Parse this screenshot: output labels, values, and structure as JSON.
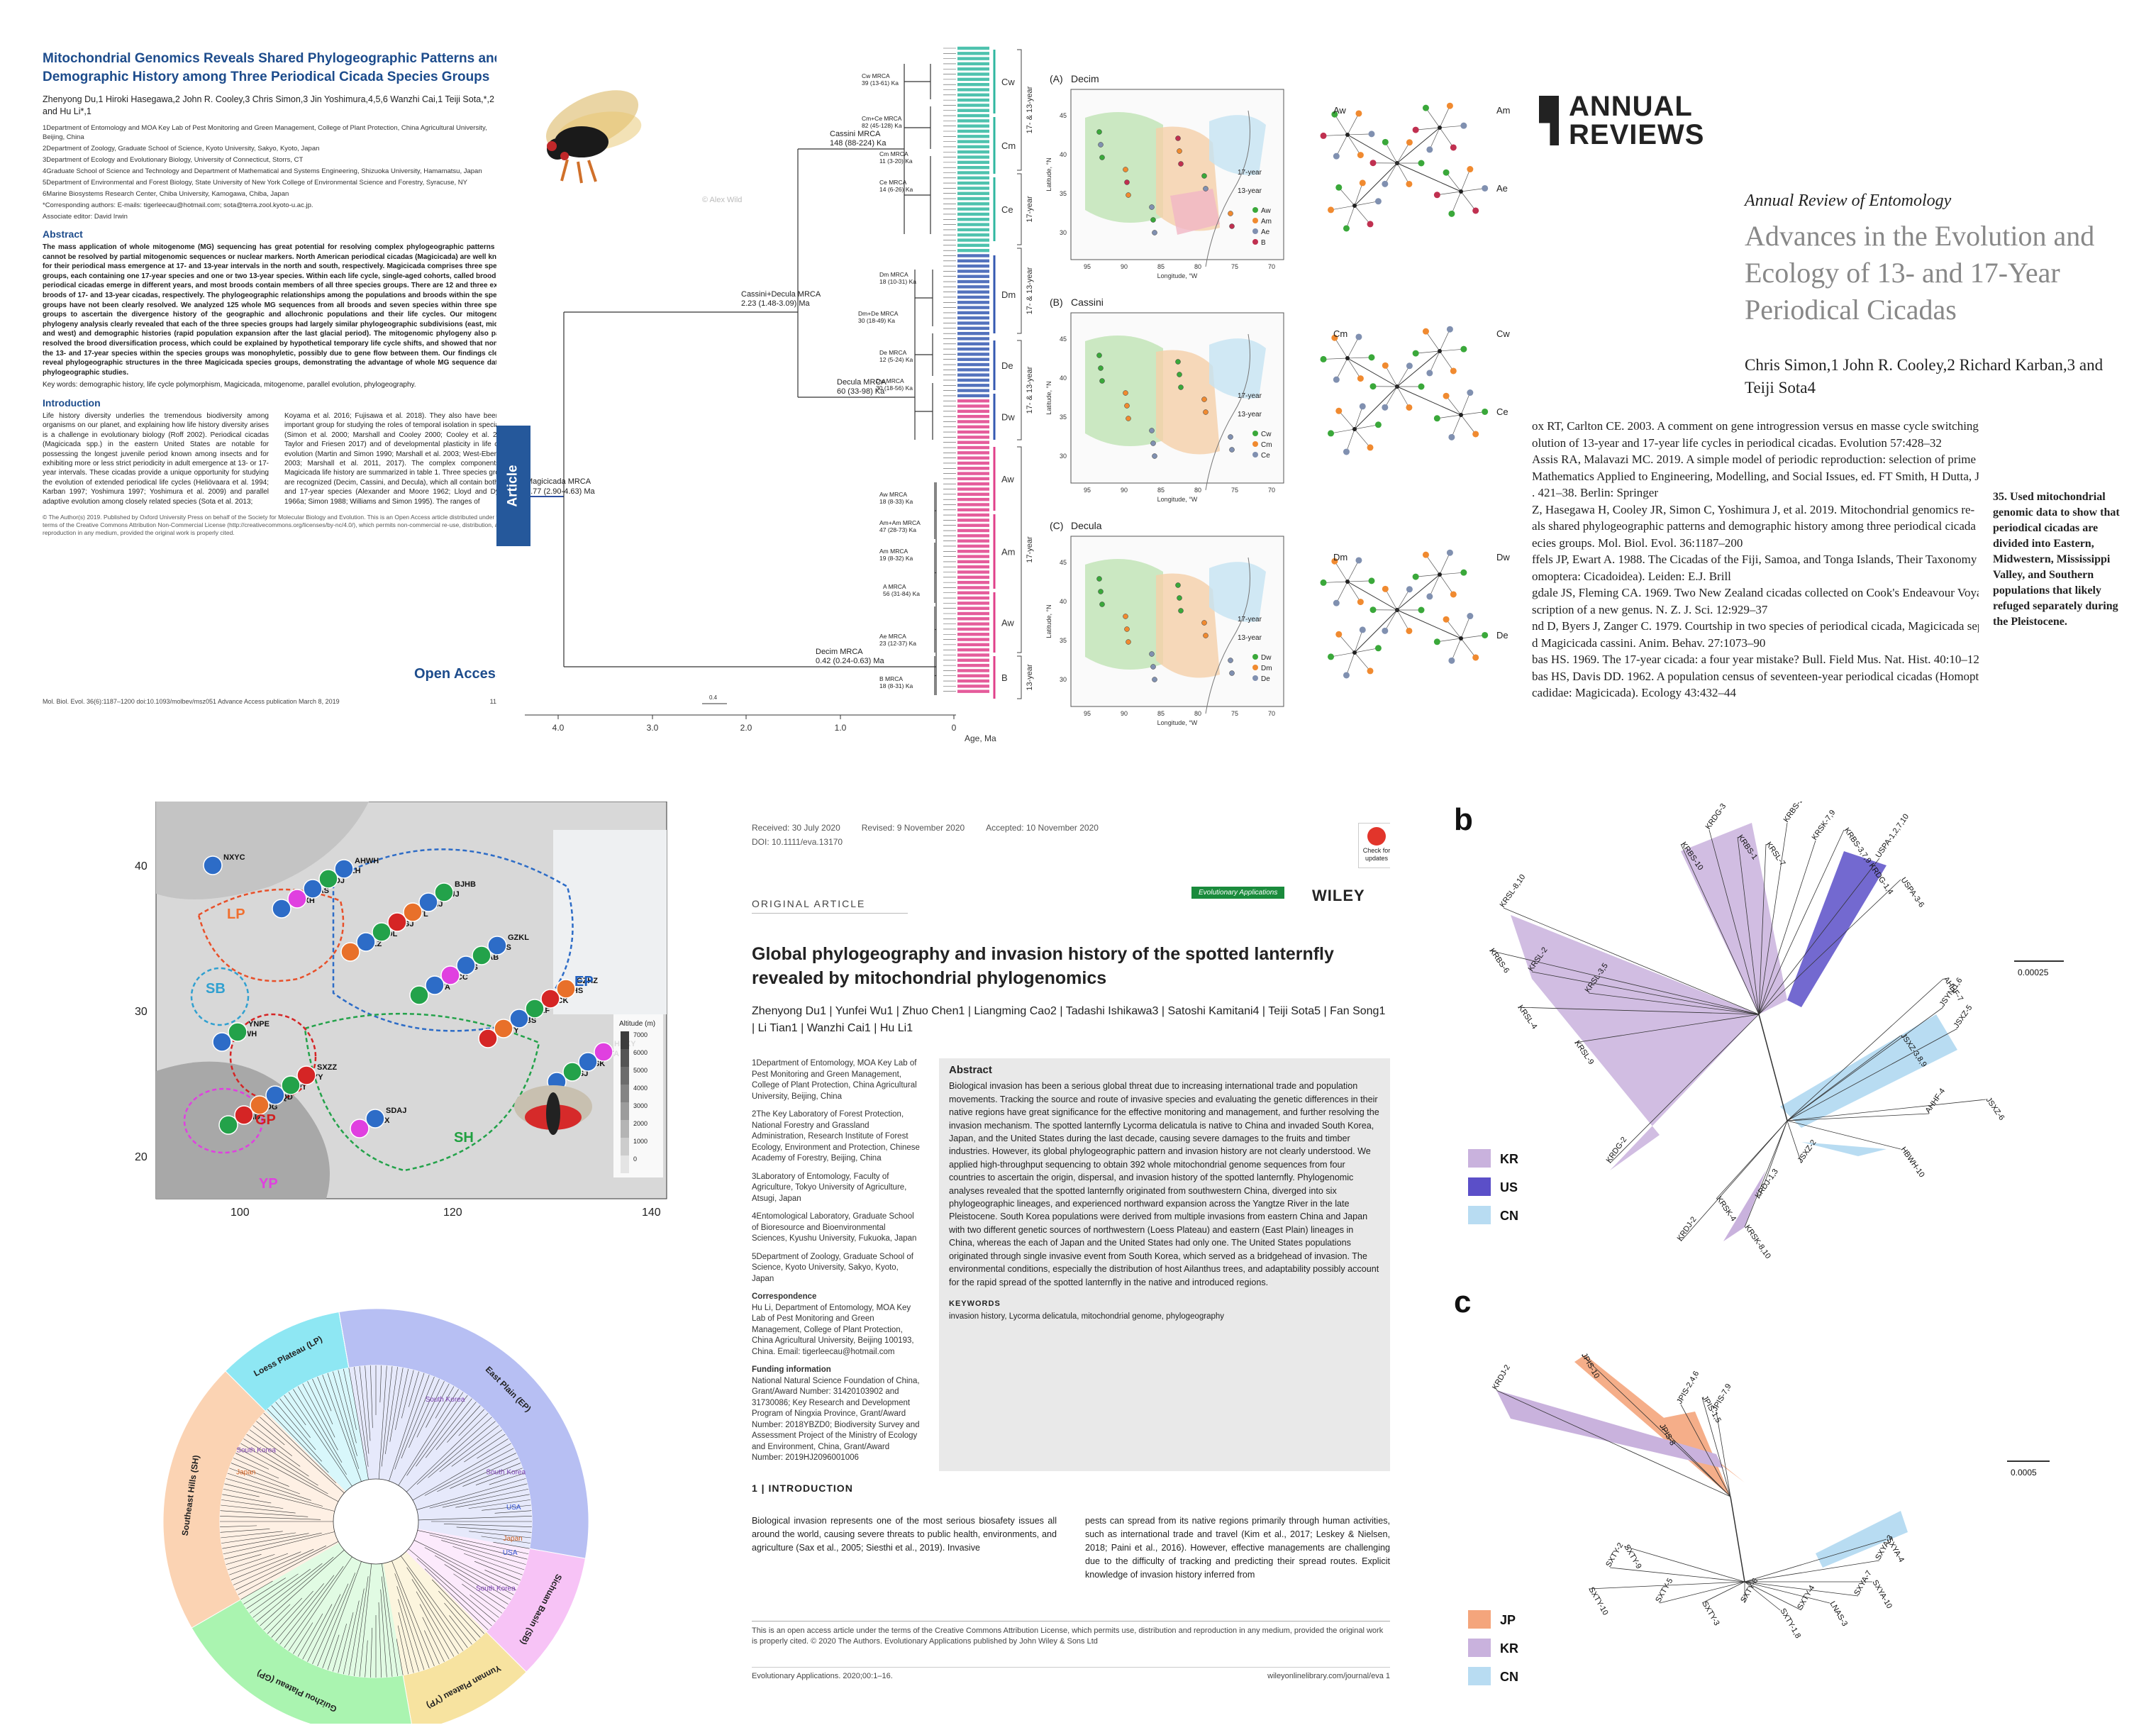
{
  "paperA": {
    "title": "Mitochondrial Genomics Reveals Shared Phylogeographic Patterns and Demographic History among Three Periodical Cicada Species Groups",
    "authors": "Zhenyong Du,1 Hiroki Hasegawa,2 John R. Cooley,3 Chris Simon,3 Jin Yoshimura,4,5,6 Wanzhi Cai,1 Teiji Sota,*,2 and Hu Li*,1",
    "affiliations": [
      "1Department of Entomology and MOA Key Lab of Pest Monitoring and Green Management, College of Plant Protection, China Agricultural University, Beijing, China",
      "2Department of Zoology, Graduate School of Science, Kyoto University, Sakyo, Kyoto, Japan",
      "3Department of Ecology and Evolutionary Biology, University of Connecticut, Storrs, CT",
      "4Graduate School of Science and Technology and Department of Mathematical and Systems Engineering, Shizuoka University, Hamamatsu, Japan",
      "5Department of Environmental and Forest Biology, State University of New York College of Environmental Science and Forestry, Syracuse, NY",
      "6Marine Biosystems Research Center, Chiba University, Kamogawa, Chiba, Japan",
      "*Corresponding authors: E-mails: tigerleecau@hotmail.com; sota@terra.zool.kyoto-u.ac.jp.",
      "Associate editor: David Irwin"
    ],
    "abstract_heading": "Abstract",
    "abstract": "The mass application of whole mitogenome (MG) sequencing has great potential for resolving complex phylogeographic patterns that cannot be resolved by partial mitogenomic sequences or nuclear markers. North American periodical cicadas (Magicicada) are well known for their periodical mass emergence at 17- and 13-year intervals in the north and south, respectively. Magicicada comprises three species groups, each containing one 17-year species and one or two 13-year species. Within each life cycle, single-aged cohorts, called broods, of periodical cicadas emerge in different years, and most broods contain members of all three species groups. There are 12 and three extant broods of 17- and 13-year cicadas, respectively. The phylogeographic relationships among the populations and broods within the species groups have not been clearly resolved. We analyzed 125 whole MG sequences from all broods and seven species within three species groups to ascertain the divergence history of the geographic and allochronic populations and their life cycles. Our mitogenomic phylogeny analysis clearly revealed that each of the three species groups had largely similar phylogeographic subdivisions (east, middle, and west) and demographic histories (rapid population expansion after the last glacial period). The mitogenomic phylogeny also partly resolved the brood diversification process, which could be explained by hypothetical temporary life cycle shifts, and showed that none of the 13- and 17-year species within the species groups was monophyletic, possibly due to gene flow between them. Our findings clearly reveal phylogeographic structures in the three Magicicada species groups, demonstrating the advantage of whole MG sequence data in phylogeographic studies.",
    "keywords": "Key words: demographic history, life cycle polymorphism, Magicicada, mitogenome, parallel evolution, phylogeography.",
    "intro_heading": "Introduction",
    "intro_col1": "Life history diversity underlies the tremendous biodiversity among organisms on our planet, and explaining how life history diversity arises is a challenge in evolutionary biology (Roff 2002). Periodical cicadas (Magicicada spp.) in the eastern United States are notable for possessing the longest juvenile period known among insects and for exhibiting more or less strict periodicity in adult emergence at 13- or 17-year intervals. These cicadas provide a unique opportunity for studying the evolution of extended periodical life cycles (Heliövaara et al. 1994; Karban 1997; Yoshimura 1997; Yoshimura et al. 2009) and parallel adaptive evolution among closely related species (Sota et al. 2013;",
    "intro_col2": "Koyama et al. 2016; Fujisawa et al. 2018). They also have been an important group for studying the roles of temporal isolation in speciation (Simon et al. 2000; Marshall and Cooley 2000; Cooley et al. 2001; Taylor and Friesen 2017) and of developmental plasticity in life cycle evolution (Martin and Simon 1990; Marshall et al. 2003; West-Eberhard 2003; Marshall et al. 2011, 2017). The complex components of Magicicada life history are summarized in table 1. Three species groups are recognized (Decim, Cassini, and Decula), which all contain both 13- and 17-year species (Alexander and Moore 1962; Lloyd and Dybas 1966a; Simon 1988; Williams and Simon 1995). The ranges of",
    "footnote": "© The Author(s) 2019. Published by Oxford University Press on behalf of the Society for Molecular Biology and Evolution. This is an Open Access article distributed under the terms of the Creative Commons Attribution Non-Commercial License (http://creativecommons.org/licenses/by-nc/4.0/), which permits non-commercial re-use, distribution, and reproduction in any medium, provided the original work is properly cited.",
    "open_access": "Open Access",
    "citation": "Mol. Biol. Evol. 36(6):1187–1200 doi:10.1093/molbev/msz051 Advance Access publication March 8, 2019",
    "page": "1187"
  },
  "tree": {
    "article_tab": "Article",
    "watermark": "© Alex Wild",
    "root_label": "Magicicada MRCA",
    "root_value": "3.77 (2.90-4.63) Ma",
    "nodes": [
      {
        "label": "Cassini MRCA",
        "value": "148 (88-224) Ka"
      },
      {
        "label": "Cassini+Decula MRCA",
        "value": "2.23 (1.48-3.09) Ma"
      },
      {
        "label": "Decula MRCA",
        "value": "60 (33-98) Ka"
      },
      {
        "label": "Decim MRCA",
        "value": "0.42 (0.24-0.63) Ma"
      },
      {
        "label": "Cw MRCA",
        "value": "39 (13-61) Ka"
      },
      {
        "label": "Cm+Ce MRCA",
        "value": "82 (45-128) Ka"
      },
      {
        "label": "Cm MRCA",
        "value": "11 (3-20) Ka"
      },
      {
        "label": "Ce MRCA",
        "value": "14 (6-26) Ka"
      },
      {
        "label": "Dm MRCA",
        "value": "18 (10-31) Ka"
      },
      {
        "label": "Dm+De MRCA",
        "value": "30 (18-49) Ka"
      },
      {
        "label": "De MRCA",
        "value": "12 (5-24) Ka"
      },
      {
        "label": "Dw MRCA",
        "value": "30 (18-56) Ka"
      },
      {
        "label": "Aw MRCA",
        "value": "18 (8-33) Ka"
      },
      {
        "label": "Am+Am MRCA",
        "value": "47 (28-73) Ka"
      },
      {
        "label": "Am MRCA",
        "value": "19 (8-32) Ka"
      },
      {
        "label": "A MRCA",
        "value": "56 (31-84) Ka"
      },
      {
        "label": "Ae MRCA",
        "value": "23 (12-37) Ka"
      },
      {
        "label": "B MRCA",
        "value": "18 (8-31) Ka"
      }
    ],
    "clades": [
      "Cw",
      "Cm",
      "Ce",
      "Dm",
      "De",
      "Dw",
      "Aw",
      "Am",
      "Aw",
      "B"
    ],
    "brackets": [
      "17- & 13-year",
      "17-year",
      "17- & 13-year",
      "17- & 13-year",
      "17-year",
      "13-year"
    ],
    "axis_ticks": [
      "4.0",
      "3.0",
      "2.0",
      "1.0",
      "0"
    ],
    "axis_label": "Age, Ma",
    "scale_label": "0.4",
    "colors": {
      "cassini": "#2fb7a0",
      "decula": "#3559b1",
      "decim": "#e0408a",
      "root": "#2d4fa0"
    }
  },
  "maps": {
    "panels": [
      {
        "tag": "(A)",
        "name": "Decim",
        "legend": [
          "Aw",
          "Am",
          "Ae",
          "B"
        ],
        "colors": [
          "#3aa83a",
          "#f08a30",
          "#8090b0",
          "#c03050"
        ]
      },
      {
        "tag": "(B)",
        "name": "Cassini",
        "legend": [
          "Cw",
          "Cm",
          "Ce"
        ],
        "colors": [
          "#3aa83a",
          "#f08a30",
          "#8090b0"
        ]
      },
      {
        "tag": "(C)",
        "name": "Decula",
        "legend": [
          "Dw",
          "Dm",
          "De"
        ],
        "colors": [
          "#3aa83a",
          "#f08a30",
          "#8090b0"
        ]
      }
    ],
    "lat_ticks": [
      "45",
      "40",
      "35",
      "30"
    ],
    "lon_ticks": [
      "95",
      "90",
      "85",
      "80",
      "75",
      "70"
    ],
    "lat_label": "Latitude, °N",
    "lon_label": "Longitude, °W",
    "year_labels": [
      "17-year",
      "13-year"
    ],
    "network_labels_a": [
      "Aw",
      "Am",
      "Ae"
    ],
    "network_labels_b": [
      "Cm",
      "Cw",
      "Ce"
    ],
    "network_labels_c": [
      "Dm",
      "Dw",
      "De"
    ]
  },
  "annual": {
    "logo": "ANNUAL\nREVIEWS",
    "logo_line1": "ANNUAL",
    "logo_line2": "REVIEWS",
    "journal": "Annual Review of Entomology",
    "title": "Advances in the Evolution and Ecology of 13- and 17-Year Periodical Cicadas",
    "authors": "Chris Simon,1 John R. Cooley,2 Richard Karban,3 and Teiji Sota4",
    "refs": [
      "ox RT, Carlton CE. 2003. A comment on gene introgression versus en masse cycle switching in the",
      "olution of 13-year and 17-year life cycles in periodical cicadas. Evolution 57:428–32",
      "Assis RA, Malavazi MC. 2019. A simple model of periodic reproduction: selection of prime periods.",
      "Mathematics Applied to Engineering, Modelling, and Social Issues, ed. FT Smith, H Dutta, JN Mordeson,",
      ". 421–38. Berlin: Springer",
      "Z, Hasegawa H, Cooley JR, Simon C, Yoshimura J, et al. 2019. Mitochondrial genomics re-",
      "als shared phylogeographic patterns and demographic history among three periodical cicada",
      "ecies groups. Mol. Biol. Evol. 36:1187–200",
      "ffels JP, Ewart A. 1988. The Cicadas of the Fiji, Samoa, and Tonga Islands, Their Taxonomy and Biogeography",
      "omoptera: Cicadoidea). Leiden: E.J. Brill",
      "gdale JS, Fleming CA. 1969. Two New Zealand cicadas collected on Cook's Endeavour Voyage, with",
      "scription of a new genus. N. Z. J. Sci. 12:929–37",
      "nd D, Byers J, Zanger C. 1979. Courtship in two species of periodical cicada, Magicicada septendecim",
      "d Magicicada cassini. Anim. Behav. 27:1073–90",
      "bas HS. 1969. The 17-year cicada: a four year mistake? Bull. Field Mus. Nat. Hist. 40:10–12",
      "bas HS, Davis DD. 1962. A population census of seventeen-year periodical cicadas (Homoptera:",
      "cadidae: Magicicada). Ecology 43:432–44"
    ],
    "note": "35. Used mitochondrial genomic data to show that periodical cicadas are divided into Eastern, Midwestern, Mississippi Valley, and Southern populations that likely refuged separately during the Pleistocene."
  },
  "chinamap": {
    "lat_ticks": [
      "40",
      "30",
      "20"
    ],
    "lon_ticks": [
      "100",
      "120",
      "140"
    ],
    "altitude_title": "Altitude (m)",
    "altitude_ticks": [
      "7000",
      "6000",
      "5000",
      "4000",
      "3000",
      "2000",
      "1000",
      "0"
    ],
    "region_labels": [
      {
        "t": "LP",
        "c": "#f07030"
      },
      {
        "t": "EP",
        "c": "#2060c0"
      },
      {
        "t": "SB",
        "c": "#30a0d0"
      },
      {
        "t": "GP",
        "c": "#d02020"
      },
      {
        "t": "YP",
        "c": "#e040e0"
      },
      {
        "t": "SH",
        "c": "#20a040"
      }
    ],
    "sites": [
      "NXYC",
      "QHXH",
      "GSLZ",
      "SXYA",
      "SXTY",
      "HBSJ",
      "BJHD",
      "LNAS",
      "LNDL",
      "KRCC",
      "KRBS",
      "KRSK",
      "KRDG",
      "KRDJ",
      "KRGJ",
      "JPIS",
      "SXLF",
      "SDTA",
      "SDQD",
      "HNLH",
      "SXYL",
      "SCAB",
      "CQCK",
      "HBXY",
      "SHPT",
      "AHWH",
      "JSNJ",
      "ZJLS",
      "AHHS",
      "HBWH",
      "HNYY",
      "JXZX",
      "CQJJ",
      "GZKL",
      "GZHZ",
      "YNPE",
      "SXZZ",
      "SDAJ",
      "BJHB"
    ]
  },
  "circle": {
    "sectors": [
      "East Plain (EP)",
      "Sichuan Basin (SB)",
      "Yunnan Plateau (YP)",
      "Guizhou Plateau (GP)",
      "Southeast Hills (SH)",
      "Loess Plateau (LP)"
    ],
    "inner_labels": [
      "South Korea",
      "South Korea",
      "Japan",
      "South Korea",
      "USA",
      "USA",
      "Japan",
      "South Korea"
    ]
  },
  "paperF": {
    "received": "Received: 30 July 2020",
    "revised": "Revised: 9 November 2020",
    "accepted": "Accepted: 10 November 2020",
    "doi": "DOI: 10.1111/eva.13170",
    "journal_badge": "Evolutionary Applications",
    "publisher": "WILEY",
    "check": "Check for updates",
    "section": "ORIGINAL ARTICLE",
    "title": "Global phylogeography and invasion history of the spotted lanternfly revealed by mitochondrial phylogenomics",
    "authors": "Zhenyong Du1 | Yunfei Wu1 | Zhuo Chen1 | Liangming Cao2 | Tadashi Ishikawa3 | Satoshi Kamitani4 | Teiji Sota5 | Fan Song1 | Li Tian1 | Wanzhi Cai1 | Hu Li1",
    "affiliations": [
      "1Department of Entomology, MOA Key Lab of Pest Monitoring and Green Management, College of Plant Protection, China Agricultural University, Beijing, China",
      "2The Key Laboratory of Forest Protection, National Forestry and Grassland Administration, Research Institute of Forest Ecology, Environment and Protection, Chinese Academy of Forestry, Beijing, China",
      "3Laboratory of Entomology, Faculty of Agriculture, Tokyo University of Agriculture, Atsugi, Japan",
      "4Entomological Laboratory, Graduate School of Bioresource and Bioenvironmental Sciences, Kyushu University, Fukuoka, Japan",
      "5Department of Zoology, Graduate School of Science, Kyoto University, Sakyo, Kyoto, Japan"
    ],
    "corr_heading": "Correspondence",
    "corr": "Hu Li, Department of Entomology, MOA Key Lab of Pest Monitoring and Green Management, College of Plant Protection, China Agricultural University, Beijing 100193, China. Email: tigerleecau@hotmail.com",
    "fund_heading": "Funding information",
    "fund": "National Natural Science Foundation of China, Grant/Award Number: 31420103902 and 31730086; Key Research and Development Program of Ningxia Province, Grant/Award Number: 2018YBZD0; Biodiversity Survey and Assessment Project of the Ministry of Ecology and Environment, China, Grant/Award Number: 2019HJ2096001006",
    "abstract_heading": "Abstract",
    "abstract": "Biological invasion has been a serious global threat due to increasing international trade and population movements. Tracking the source and route of invasive species and evaluating the genetic differences in their native regions have great significance for the effective monitoring and management, and further resolving the invasion mechanism. The spotted lanternfly Lycorma delicatula is native to China and invaded South Korea, Japan, and the United States during the last decade, causing severe damages to the fruits and timber industries. However, its global phylogeographic pattern and invasion history are not clearly understood. We applied high-throughput sequencing to obtain 392 whole mitochondrial genome sequences from four countries to ascertain the origin, dispersal, and invasion history of the spotted lanternfly. Phylogenomic analyses revealed that the spotted lanternfly originated from southwestern China, diverged into six phylogeographic lineages, and experienced northward expansion across the Yangtze River in the late Pleistocene. South Korea populations were derived from multiple invasions from eastern China and Japan with two different genetic sources of northwestern (Loess Plateau) and eastern (East Plain) lineages in China, whereas the each of Japan and the United States had only one. The United States populations originated through single invasive event from South Korea, which served as a bridgehead of invasion. The environmental conditions, especially the distribution of host Ailanthus trees, and adaptability possibly account for the rapid spread of the spotted lanternfly in the native and introduced regions.",
    "kw_heading": "KEYWORDS",
    "keywords": "invasion history, Lycorma delicatula, mitochondrial genome, phylogeography",
    "intro_heading": "1 | INTRODUCTION",
    "intro_col1": "Biological invasion represents one of the most serious biosafety issues all around the world, causing severe threats to public health, environments, and agriculture (Sax et al., 2005; Siesthi et al., 2019). Invasive",
    "intro_col2": "pests can spread from its native regions primarily through human activities, such as international trade and travel (Kim et al., 2017; Leskey & Nielsen, 2018; Paini et al., 2016). However, effective managements are challenging due to the difficulty of tracking and predicting their spread routes. Explicit knowledge of invasion history inferred from",
    "license": "This is an open access article under the terms of the Creative Commons Attribution License, which permits use, distribution and reproduction in any medium, provided the original work is properly cited. © 2020 The Authors. Evolutionary Applications published by John Wiley & Sons Ltd",
    "citation_left": "Evolutionary Applications. 2020;00:1–16.",
    "citation_right": "wileyonlinelibrary.com/journal/eva    1"
  },
  "unrooted": {
    "b_label": "b",
    "c_label": "c",
    "b_scale": "0.00025",
    "c_scale": "0.0005",
    "b_legend": [
      {
        "t": "KR",
        "c": "#c9b2dd"
      },
      {
        "t": "US",
        "c": "#5b4fc8"
      },
      {
        "t": "CN",
        "c": "#b8dcf2"
      }
    ],
    "c_legend": [
      {
        "t": "JP",
        "c": "#f4a57c"
      },
      {
        "t": "KR",
        "c": "#c9b2dd"
      },
      {
        "t": "CN",
        "c": "#b8dcf2"
      }
    ],
    "b_tips": [
      "KRBS-10",
      "KRDG-3",
      "KRBS-1",
      "KRBS-2",
      "KRSL-7",
      "KRSK-7,9",
      "KRBS-3,7,9 KRDG-1,4",
      "USPA-1,2,7,10",
      "USPA-3-6",
      "KRSL-8,10",
      "KRBS-6",
      "KRSL-2",
      "KRSL-4",
      "KRSL-3,5",
      "KRSL-9",
      "KRDG-2",
      "AHHF-7",
      "JSYN-1,6",
      "JSXZ-3,8,9",
      "JSXZ-5",
      "JSXZ-6",
      "AHHF-4",
      "HBWH-10",
      "JSXZ-2",
      "KRSK-8,10",
      "KRDJ-1,3",
      "KRSK-4",
      "KRDJ-2"
    ],
    "c_tips": [
      "JPIS-10",
      "JPIS-2,4,6",
      "JPIS-1,5",
      "JPIS-7,9",
      "JPIS-8",
      "KRDJ-2",
      "SXTY-9",
      "SXTY-2",
      "SXTY-10",
      "SXTY-5",
      "SXTY-3",
      "SXTY-6",
      "SXTY-1,8",
      "SXTY-4",
      "LNAS-3",
      "SXYA-7",
      "SXYA-10",
      "SXYA-3",
      "SXYA-4"
    ]
  }
}
